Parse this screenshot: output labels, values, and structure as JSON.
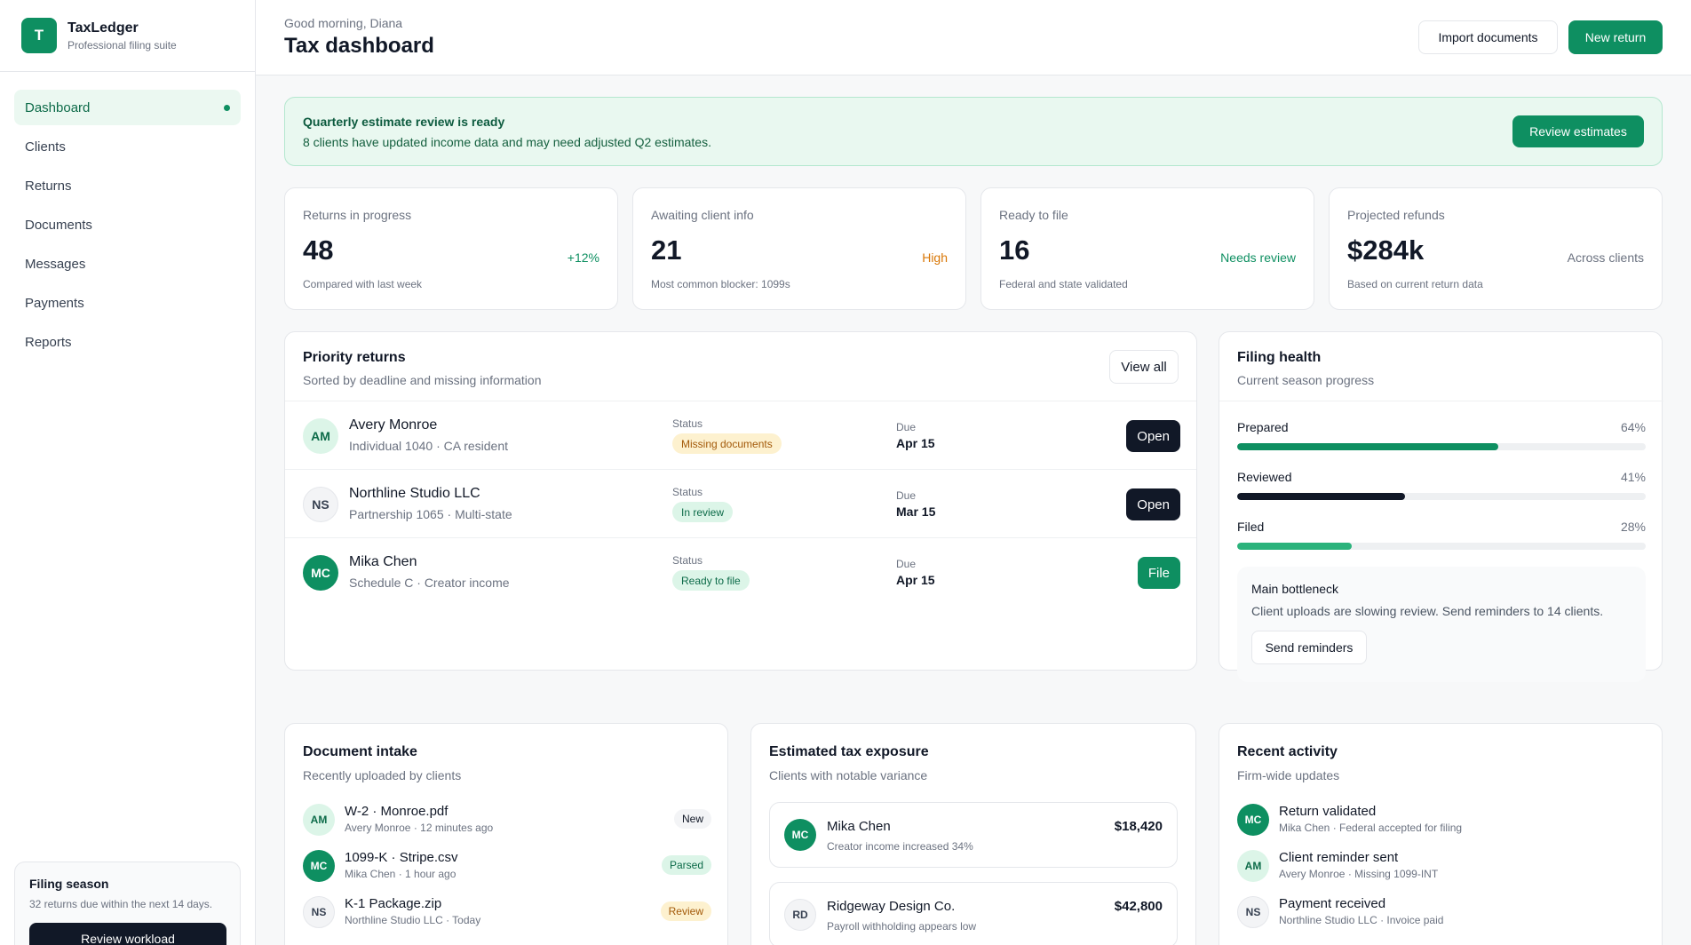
{
  "brand": {
    "logo_letter": "T",
    "name": "TaxLedger",
    "subtitle": "Professional filing suite"
  },
  "sidebar": {
    "items": [
      {
        "label": "Dashboard",
        "active": true
      },
      {
        "label": "Clients"
      },
      {
        "label": "Returns"
      },
      {
        "label": "Documents"
      },
      {
        "label": "Messages"
      },
      {
        "label": "Payments"
      },
      {
        "label": "Reports"
      }
    ],
    "season": {
      "title": "Filing season",
      "text": "32 returns due within the next 14 days.",
      "button": "Review workload"
    }
  },
  "header": {
    "greeting": "Good morning, Diana",
    "title": "Tax dashboard",
    "import_label": "Import documents",
    "new_label": "New return"
  },
  "banner": {
    "title": "Quarterly estimate review is ready",
    "text": "8 clients have updated income data and may need adjusted Q2 estimates.",
    "button": "Review estimates"
  },
  "stats": [
    {
      "label": "Returns in progress",
      "value": "48",
      "delta": "+12%",
      "delta_color": "#0e8f61",
      "note": "Compared with last week"
    },
    {
      "label": "Awaiting client info",
      "value": "21",
      "delta": "High",
      "delta_color": "#d97706",
      "note": "Most common blocker: 1099s"
    },
    {
      "label": "Ready to file",
      "value": "16",
      "delta": "Needs review",
      "delta_color": "#0e8f61",
      "note": "Federal and state validated"
    },
    {
      "label": "Projected refunds",
      "value": "$284k",
      "delta": "Across clients",
      "delta_color": "#6b7280",
      "note": "Based on current return data"
    }
  ],
  "priority": {
    "title": "Priority returns",
    "subtitle": "Sorted by deadline and missing information",
    "view_all": "View all",
    "status_label": "Status",
    "due_label": "Due",
    "rows": [
      {
        "initials": "AM",
        "name": "Avery Monroe",
        "sub": "Individual 1040 · CA resident",
        "status": "Missing documents",
        "due": "Apr 15",
        "action": "Open"
      },
      {
        "initials": "NS",
        "name": "Northline Studio LLC",
        "sub": "Partnership 1065 · Multi-state",
        "status": "In review",
        "due": "Mar 15",
        "action": "Open"
      },
      {
        "initials": "MC",
        "name": "Mika Chen",
        "sub": "Schedule C · Creator income",
        "status": "Ready to file",
        "due": "Apr 15",
        "action": "File"
      }
    ]
  },
  "health": {
    "title": "Filing health",
    "subtitle": "Current season progress",
    "bars": [
      {
        "label": "Prepared",
        "value": "64%",
        "fraction": 0.64,
        "color": "#0e8f61"
      },
      {
        "label": "Reviewed",
        "value": "41%",
        "fraction": 0.41,
        "color": "#111827"
      },
      {
        "label": "Filed",
        "value": "28%",
        "fraction": 0.28,
        "color": "#2bb37c"
      }
    ],
    "bottleneck_title": "Main bottleneck",
    "bottleneck_text": "Client uploads are slowing review. Send reminders to 14 clients.",
    "bottleneck_button": "Send reminders"
  },
  "intake": {
    "title": "Document intake",
    "subtitle": "Recently uploaded by clients",
    "items": [
      {
        "initials": "AM",
        "name": "W-2 · Monroe.pdf",
        "sub": "Avery Monroe · 12 minutes ago",
        "badge": "New"
      },
      {
        "initials": "MC",
        "name": "1099-K · Stripe.csv",
        "sub": "Mika Chen · 1 hour ago",
        "badge": "Parsed"
      },
      {
        "initials": "NS",
        "name": "K-1 Package.zip",
        "sub": "Northline Studio LLC · Today",
        "badge": "Review"
      }
    ]
  },
  "exposure": {
    "title": "Estimated tax exposure",
    "subtitle": "Clients with notable variance",
    "items": [
      {
        "initials": "MC",
        "name": "Mika Chen",
        "sub": "Creator income increased 34%",
        "amount": "$18,420"
      },
      {
        "initials": "RD",
        "name": "Ridgeway Design Co.",
        "sub": "Payroll withholding appears low",
        "amount": "$42,800"
      }
    ]
  },
  "activity": {
    "title": "Recent activity",
    "subtitle": "Firm-wide updates",
    "items": [
      {
        "initials": "MC",
        "name": "Return validated",
        "sub": "Mika Chen · Federal accepted for filing"
      },
      {
        "initials": "AM",
        "name": "Client reminder sent",
        "sub": "Avery Monroe · Missing 1099-INT"
      },
      {
        "initials": "NS",
        "name": "Payment received",
        "sub": "Northline Studio LLC · Invoice paid"
      }
    ]
  }
}
